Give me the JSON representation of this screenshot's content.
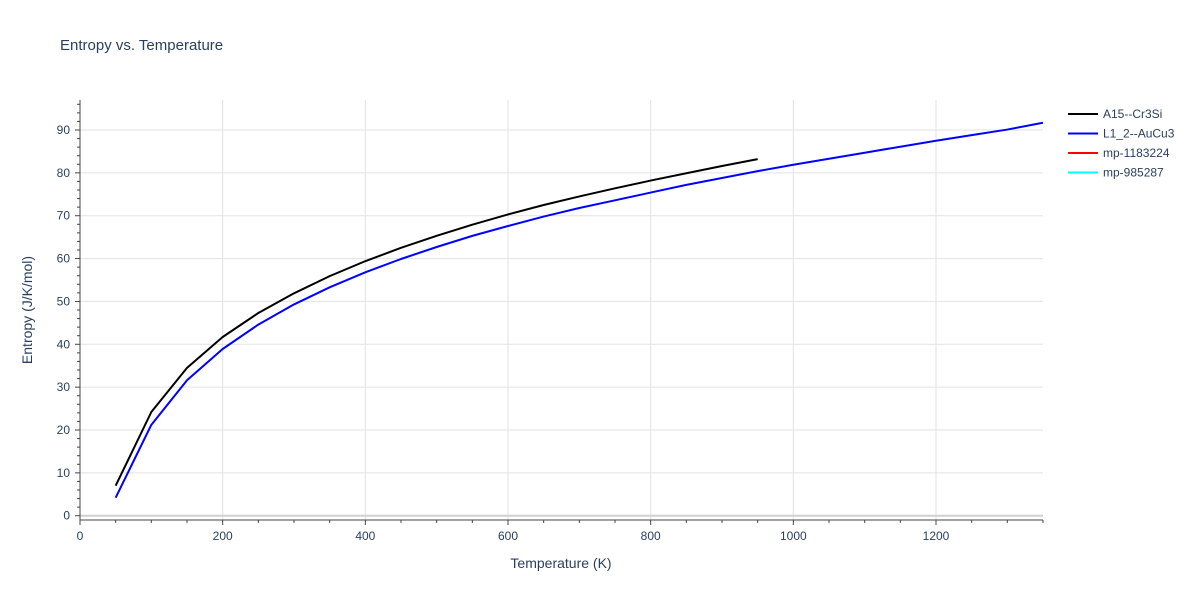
{
  "chart_data": {
    "type": "line",
    "title": "Entropy vs. Temperature",
    "xlabel": "Temperature (K)",
    "ylabel": "Entropy (J/K/mol)",
    "xlim": [
      0,
      1350
    ],
    "ylim": [
      -1,
      97
    ],
    "x_ticks": [
      0,
      200,
      400,
      600,
      800,
      1000,
      1200
    ],
    "y_ticks": [
      0,
      10,
      20,
      30,
      40,
      50,
      60,
      70,
      80,
      90
    ],
    "grid": true,
    "legend_position": "top-right",
    "series": [
      {
        "name": "A15--Cr3Si",
        "color": "#000000",
        "x": [
          50,
          100,
          150,
          200,
          250,
          300,
          350,
          400,
          450,
          500,
          550,
          600,
          650,
          700,
          750,
          800,
          850,
          900,
          950
        ],
        "y": [
          7.0,
          24.2,
          34.5,
          41.7,
          47.3,
          51.9,
          55.9,
          59.4,
          62.5,
          65.3,
          67.9,
          70.3,
          72.5,
          74.5,
          76.4,
          78.2,
          79.9,
          81.6,
          83.2
        ]
      },
      {
        "name": "L1_2--AuCu3",
        "color": "#0000ff",
        "x": [
          50,
          100,
          150,
          200,
          250,
          300,
          350,
          400,
          450,
          500,
          550,
          600,
          650,
          700,
          750,
          800,
          850,
          900,
          950,
          1000,
          1050,
          1100,
          1150,
          1200,
          1250,
          1300,
          1350
        ],
        "y": [
          4.2,
          21.2,
          31.6,
          38.9,
          44.6,
          49.3,
          53.3,
          56.8,
          59.9,
          62.7,
          65.3,
          67.6,
          69.8,
          71.8,
          73.6,
          75.4,
          77.2,
          78.8,
          80.4,
          81.9,
          83.3,
          84.7,
          86.1,
          87.5,
          88.8,
          90.1,
          91.7
        ]
      },
      {
        "name": "mp-1183224",
        "color": "#ff0000",
        "x": [],
        "y": []
      },
      {
        "name": "mp-985287",
        "color": "#00ffff",
        "x": [],
        "y": []
      }
    ]
  }
}
